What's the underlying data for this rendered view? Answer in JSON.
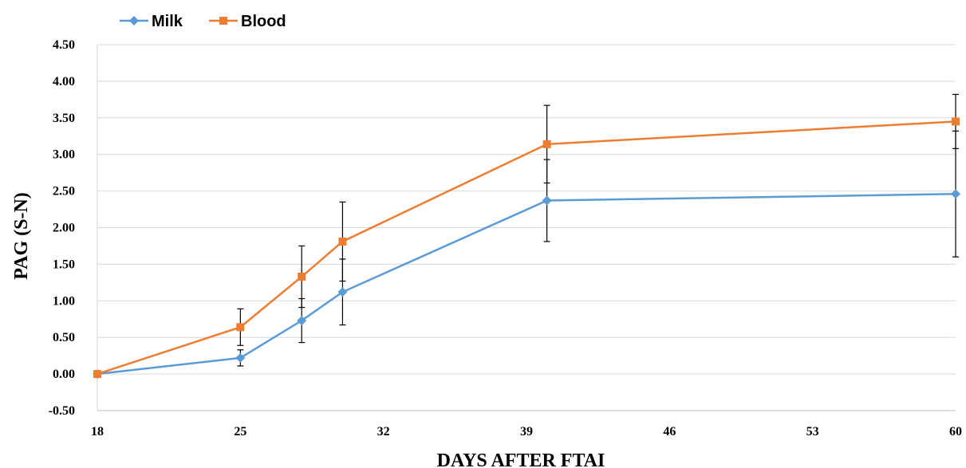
{
  "chart_data": {
    "type": "line",
    "title": "",
    "xlabel": "DAYS AFTER FTAI",
    "ylabel": "PAG (S-N)",
    "xlim": [
      18,
      60
    ],
    "ylim": [
      -0.5,
      4.5
    ],
    "x_ticks": [
      "18",
      "25",
      "32",
      "39",
      "46",
      "53",
      "60"
    ],
    "y_ticks": [
      "-0.50",
      "0.00",
      "0.50",
      "1.00",
      "1.50",
      "2.00",
      "2.50",
      "3.00",
      "3.50",
      "4.00",
      "4.50"
    ],
    "grid": "horizontal",
    "legend_position": "top-left",
    "series": [
      {
        "name": "Milk",
        "color": "#5b9bd5",
        "marker": "diamond",
        "x": [
          18,
          25,
          28,
          30,
          40,
          60
        ],
        "y": [
          0.0,
          0.22,
          0.73,
          1.12,
          2.37,
          2.46
        ],
        "error": [
          0.0,
          0.11,
          0.3,
          0.45,
          0.56,
          0.86
        ]
      },
      {
        "name": "Blood",
        "color": "#ed7d31",
        "marker": "square",
        "x": [
          18,
          25,
          28,
          30,
          40,
          60
        ],
        "y": [
          0.0,
          0.64,
          1.33,
          1.81,
          3.14,
          3.45
        ],
        "error": [
          0.0,
          0.25,
          0.42,
          0.54,
          0.53,
          0.37
        ]
      }
    ]
  }
}
